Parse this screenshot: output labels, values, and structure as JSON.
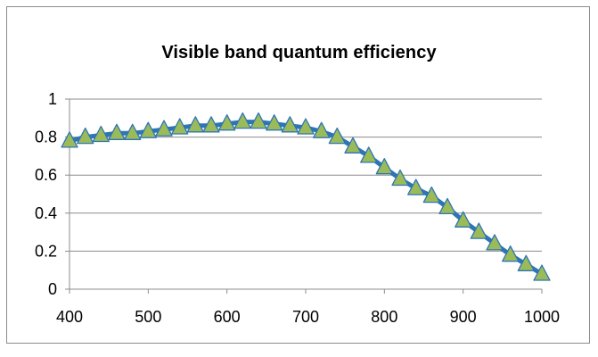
{
  "chart_data": {
    "type": "line",
    "title": "Visible band quantum efficiency",
    "xlabel": "",
    "ylabel": "",
    "xlim": [
      400,
      1000
    ],
    "ylim": [
      0,
      1
    ],
    "xticks": [
      400,
      500,
      600,
      700,
      800,
      900,
      1000
    ],
    "yticks": [
      0,
      0.2,
      0.4,
      0.6,
      0.8,
      1
    ],
    "grid": "horizontal",
    "legend": "none",
    "series": [
      {
        "marker": "triangle",
        "line_color": "#2e75b6",
        "marker_fill": "#9bbb59",
        "x": [
          400,
          420,
          440,
          460,
          480,
          500,
          520,
          540,
          560,
          580,
          600,
          620,
          640,
          660,
          680,
          700,
          720,
          740,
          760,
          780,
          800,
          820,
          840,
          860,
          880,
          900,
          920,
          940,
          960,
          980,
          1000
        ],
        "y": [
          0.78,
          0.8,
          0.81,
          0.82,
          0.82,
          0.83,
          0.84,
          0.85,
          0.86,
          0.86,
          0.87,
          0.88,
          0.88,
          0.87,
          0.86,
          0.85,
          0.83,
          0.8,
          0.75,
          0.7,
          0.64,
          0.58,
          0.53,
          0.49,
          0.43,
          0.36,
          0.3,
          0.24,
          0.18,
          0.13,
          0.08
        ]
      }
    ]
  }
}
